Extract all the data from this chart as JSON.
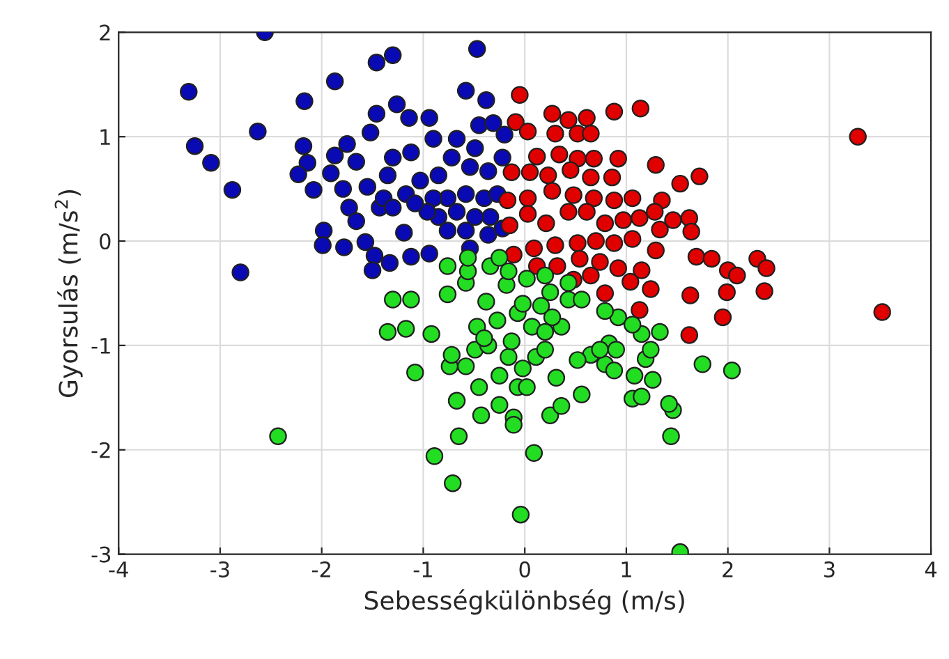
{
  "chart_data": {
    "type": "scatter",
    "xlabel": "Sebességkülönbség (m/s)",
    "ylabel": "Gyorsulás (m/s$^{2}$)",
    "xlim": [
      -4,
      4
    ],
    "ylim": [
      -3,
      2
    ],
    "xticks": [
      -4,
      -3,
      -2,
      -1,
      0,
      1,
      2,
      3,
      4
    ],
    "yticks": [
      -3,
      -2,
      -1,
      0,
      1,
      2
    ],
    "grid": true,
    "marker": "circle",
    "series": [
      {
        "color": "#0a0ab4",
        "x": [
          -2.56,
          -3.31,
          -3.25,
          -3.09,
          -2.88,
          -2.8,
          -2.63,
          -2.17,
          -1.87,
          -1.46,
          -1.3,
          -0.47,
          -0.58,
          -0.38,
          -2.18,
          -2.14,
          -2.23,
          -2.08,
          -1.98,
          -1.99,
          -1.78,
          -1.57,
          -1.48,
          -1.5,
          -1.33,
          -1.19,
          -1.12,
          -0.94,
          -0.85,
          -0.76,
          -0.58,
          -0.54,
          -0.34,
          -0.36,
          -0.22,
          -1.87,
          -1.91,
          -1.79,
          -1.73,
          -1.66,
          -1.43,
          -1.39,
          -1.55,
          -1.66,
          -1.75,
          -1.52,
          -1.46,
          -1.26,
          -1.14,
          -0.94,
          -0.9,
          -1.12,
          -1.3,
          -1.35,
          -1.17,
          -1.03,
          -0.85,
          -0.72,
          -0.67,
          -0.45,
          -0.31,
          -0.49,
          -0.54,
          -0.36,
          -0.58,
          -0.76,
          -0.9,
          -0.4,
          -0.27,
          -0.22,
          -0.2,
          -0.96,
          -1.08,
          -1.3,
          -0.67,
          -0.49
        ],
        "values": [
          2.0,
          1.43,
          0.91,
          0.75,
          0.49,
          -0.3,
          1.05,
          1.34,
          1.53,
          1.71,
          1.78,
          1.84,
          1.44,
          1.35,
          0.91,
          0.75,
          0.64,
          0.49,
          0.1,
          -0.04,
          -0.06,
          -0.01,
          -0.14,
          -0.28,
          -0.21,
          0.08,
          -0.15,
          -0.12,
          0.23,
          0.1,
          0.1,
          -0.07,
          0.23,
          0.06,
          0.12,
          0.82,
          0.65,
          0.5,
          0.32,
          0.19,
          0.32,
          0.41,
          0.52,
          0.76,
          0.93,
          1.04,
          1.22,
          1.31,
          1.18,
          1.18,
          0.98,
          0.85,
          0.8,
          0.63,
          0.45,
          0.58,
          0.63,
          0.8,
          0.98,
          1.11,
          1.13,
          0.89,
          0.71,
          0.67,
          0.45,
          0.41,
          0.41,
          0.41,
          0.45,
          0.8,
          1.02,
          0.28,
          0.36,
          0.32,
          0.28,
          0.23
        ]
      },
      {
        "color": "#e00000",
        "x": [
          -0.05,
          0.88,
          1.14,
          3.28,
          3.52,
          0.27,
          0.43,
          0.61,
          -0.09,
          0.03,
          0.3,
          0.52,
          0.65,
          0.92,
          1.29,
          1.53,
          1.72,
          0.12,
          0.34,
          0.52,
          0.68,
          -0.13,
          0.05,
          0.23,
          0.45,
          0.65,
          0.86,
          -0.17,
          0.03,
          0.27,
          0.48,
          0.68,
          0.88,
          1.06,
          1.35,
          -0.15,
          0.03,
          0.21,
          0.43,
          0.61,
          0.79,
          0.97,
          1.13,
          1.28,
          1.46,
          1.62,
          1.33,
          1.64,
          -0.11,
          0.09,
          0.3,
          0.52,
          0.7,
          0.88,
          1.06,
          1.29,
          0.12,
          0.32,
          0.54,
          0.74,
          0.92,
          1.15,
          0.48,
          0.65,
          0.79,
          1.04,
          1.24,
          1.13,
          1.69,
          1.84,
          2.0,
          2.09,
          2.29,
          2.38,
          2.36,
          1.99,
          1.63,
          1.95,
          1.62
        ],
        "values": [
          1.4,
          1.24,
          1.27,
          1.0,
          -0.68,
          1.22,
          1.16,
          1.18,
          1.14,
          1.05,
          1.03,
          1.03,
          1.03,
          0.79,
          0.73,
          0.55,
          0.62,
          0.81,
          0.83,
          0.79,
          0.79,
          0.66,
          0.66,
          0.63,
          0.68,
          0.61,
          0.61,
          0.39,
          0.41,
          0.48,
          0.44,
          0.41,
          0.39,
          0.41,
          0.39,
          0.15,
          0.26,
          0.17,
          0.28,
          0.28,
          0.17,
          0.2,
          0.22,
          0.28,
          0.2,
          0.22,
          0.11,
          0.09,
          -0.13,
          -0.07,
          -0.04,
          -0.02,
          0.0,
          -0.02,
          0.02,
          -0.09,
          -0.24,
          -0.24,
          -0.17,
          -0.2,
          -0.26,
          -0.28,
          -0.37,
          -0.33,
          -0.5,
          -0.39,
          -0.46,
          -0.66,
          -0.15,
          -0.17,
          -0.28,
          -0.33,
          -0.17,
          -0.26,
          -0.48,
          -0.49,
          -0.52,
          -0.73,
          -0.9
        ]
      },
      {
        "color": "#22dd22",
        "x": [
          -2.43,
          1.53,
          -0.04,
          -0.71,
          -0.89,
          0.09,
          -0.65,
          -1.08,
          -0.67,
          -0.43,
          -0.25,
          -0.11,
          -0.11,
          -0.45,
          -0.07,
          0.02,
          0.25,
          0.36,
          0.56,
          0.31,
          1.44,
          1.46,
          1.42,
          1.26,
          1.06,
          1.15,
          1.08,
          1.19,
          1.24,
          1.75,
          1.33,
          1.15,
          0.92,
          0.83,
          0.9,
          0.79,
          0.88,
          0.65,
          0.52,
          -0.74,
          -0.58,
          -0.72,
          -0.49,
          -0.36,
          -0.25,
          -0.02,
          0.11,
          0.2,
          -0.16,
          -0.13,
          0.07,
          0.2,
          0.36,
          0.27,
          -0.47,
          -0.4,
          -0.27,
          -0.07,
          -1.35,
          -1.17,
          -0.92,
          -1.3,
          -1.12,
          -0.76,
          -0.58,
          -0.76,
          -0.56,
          -0.38,
          -0.34,
          -0.18,
          -0.16,
          -0.02,
          0.16,
          0.25,
          0.43,
          0.56,
          0.2,
          0.02,
          0.43,
          -0.25,
          -0.56,
          0.79,
          1.06,
          0.74,
          2.04
        ],
        "values": [
          -1.87,
          -2.98,
          -2.62,
          -2.32,
          -2.06,
          -2.03,
          -1.87,
          -1.26,
          -1.53,
          -1.67,
          -1.57,
          -1.69,
          -1.76,
          -1.4,
          -1.4,
          -1.4,
          -1.67,
          -1.58,
          -1.47,
          -1.31,
          -1.87,
          -1.62,
          -1.56,
          -1.33,
          -1.51,
          -1.49,
          -1.29,
          -1.13,
          -1.04,
          -1.18,
          -0.87,
          -0.89,
          -0.73,
          -0.98,
          -1.04,
          -1.18,
          -1.24,
          -1.09,
          -1.14,
          -1.2,
          -1.2,
          -1.09,
          -1.04,
          -1.0,
          -1.29,
          -1.22,
          -1.11,
          -1.04,
          -1.11,
          -0.96,
          -0.82,
          -0.87,
          -0.82,
          -0.73,
          -0.82,
          -0.93,
          -0.76,
          -0.69,
          -0.87,
          -0.84,
          -0.89,
          -0.56,
          -0.56,
          -0.51,
          -0.4,
          -0.24,
          -0.29,
          -0.58,
          -0.24,
          -0.42,
          -0.29,
          -0.6,
          -0.62,
          -0.49,
          -0.56,
          -0.56,
          -0.33,
          -0.36,
          -0.4,
          -0.16,
          -0.16,
          -0.67,
          -0.8,
          -1.04,
          -1.24
        ]
      }
    ]
  }
}
